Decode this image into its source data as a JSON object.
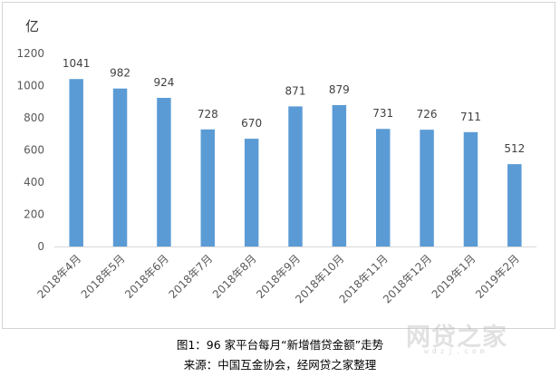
{
  "chart_data": {
    "type": "bar",
    "categories": [
      "2018年4月",
      "2018年5月",
      "2018年6月",
      "2018年7月",
      "2018年8月",
      "2018年9月",
      "2018年10月",
      "2018年11月",
      "2018年12月",
      "2019年1月",
      "2019年2月"
    ],
    "values": [
      1041,
      982,
      924,
      728,
      670,
      871,
      879,
      731,
      726,
      711,
      512
    ],
    "ylabel": "亿",
    "ylim": [
      0,
      1200
    ],
    "yticks": [
      0,
      200,
      400,
      600,
      800,
      1000,
      1200
    ],
    "grid": false,
    "data_labels": true,
    "bar_color": "#5b9bd5"
  },
  "caption": {
    "title": "图1：96 家平台每月“新增借贷金额”走势",
    "source": "来源：中国互金协会，经网贷之家整理"
  },
  "watermark": {
    "text": "网贷之家",
    "url": "wdzj.com"
  }
}
